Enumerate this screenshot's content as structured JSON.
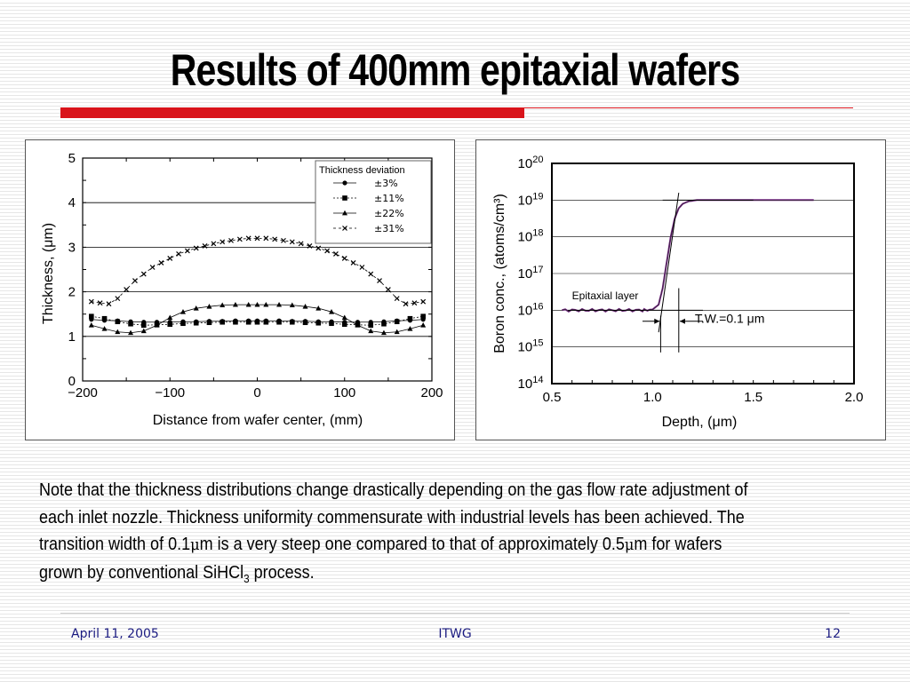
{
  "slide": {
    "title": "Results of 400mm epitaxial wafers",
    "note_line1": "Note that the thickness distributions change drastically depending on the gas flow rate adjustment of",
    "note_line2": "each inlet nozzle. Thickness uniformity commensurate with industrial levels has been achieved. The",
    "note_line3_a": "transition width of 0.1",
    "note_mu1": "μ",
    "note_line3_b": "m is a very steep one compared to that of approximately 0.5",
    "note_mu2": "μ",
    "note_line3_c": "m for wafers",
    "note_line4_a": "grown by conventional SiHCl",
    "note_line4_sub": "3",
    "note_line4_b": " process.",
    "footer_date": "April  11, 2005",
    "footer_center": "ITWG",
    "footer_page": "12"
  },
  "colors": {
    "accent_red": "#d9141b",
    "footer_text": "#1a1a80",
    "profile_purple": "#7a2a8a"
  },
  "chart_data": [
    {
      "type": "line",
      "xlabel": "Distance from wafer center, (mm)",
      "ylabel": "Thickness, (μm)",
      "xlim": [
        -200,
        200
      ],
      "ylim": [
        0,
        5
      ],
      "xticks": [
        "−200",
        "−100",
        "0",
        "100",
        "200"
      ],
      "yticks": [
        "0",
        "1",
        "2",
        "3",
        "4",
        "5"
      ],
      "legend_title": "Thickness deviation",
      "legend_position": "top-right",
      "grid": "horizontal",
      "series": [
        {
          "name": "±3%",
          "marker": "circle",
          "x": [
            -190,
            -175,
            -160,
            -145,
            -130,
            -115,
            -100,
            -85,
            -70,
            -55,
            -40,
            -25,
            -10,
            0,
            10,
            25,
            40,
            55,
            70,
            85,
            100,
            115,
            130,
            145,
            160,
            175,
            190
          ],
          "y": [
            1.38,
            1.36,
            1.35,
            1.33,
            1.32,
            1.32,
            1.32,
            1.33,
            1.33,
            1.34,
            1.34,
            1.35,
            1.35,
            1.35,
            1.35,
            1.35,
            1.34,
            1.34,
            1.33,
            1.33,
            1.32,
            1.32,
            1.32,
            1.33,
            1.35,
            1.36,
            1.38
          ]
        },
        {
          "name": "±11%",
          "marker": "square",
          "x": [
            -190,
            -175,
            -160,
            -145,
            -130,
            -115,
            -100,
            -85,
            -70,
            -55,
            -40,
            -25,
            -10,
            0,
            10,
            25,
            40,
            55,
            70,
            85,
            100,
            115,
            130,
            145,
            160,
            175,
            190
          ],
          "y": [
            1.45,
            1.4,
            1.33,
            1.28,
            1.25,
            1.26,
            1.27,
            1.29,
            1.3,
            1.31,
            1.32,
            1.32,
            1.32,
            1.32,
            1.32,
            1.32,
            1.32,
            1.31,
            1.3,
            1.29,
            1.27,
            1.26,
            1.25,
            1.28,
            1.33,
            1.4,
            1.45
          ]
        },
        {
          "name": "±22%",
          "marker": "triangle",
          "x": [
            -190,
            -175,
            -160,
            -145,
            -130,
            -115,
            -100,
            -85,
            -70,
            -55,
            -40,
            -25,
            -10,
            0,
            10,
            25,
            40,
            55,
            70,
            85,
            100,
            115,
            130,
            145,
            160,
            175,
            190
          ],
          "y": [
            1.25,
            1.17,
            1.1,
            1.08,
            1.12,
            1.25,
            1.42,
            1.55,
            1.63,
            1.67,
            1.7,
            1.71,
            1.71,
            1.71,
            1.71,
            1.71,
            1.7,
            1.67,
            1.63,
            1.55,
            1.42,
            1.25,
            1.12,
            1.08,
            1.1,
            1.17,
            1.25
          ]
        },
        {
          "name": "±31%",
          "marker": "x",
          "x": [
            -190,
            -180,
            -170,
            -160,
            -150,
            -140,
            -130,
            -120,
            -110,
            -100,
            -90,
            -80,
            -70,
            -60,
            -50,
            -40,
            -30,
            -20,
            -10,
            0,
            10,
            20,
            30,
            40,
            50,
            60,
            70,
            80,
            90,
            100,
            110,
            120,
            130,
            140,
            150,
            160,
            170,
            180,
            190
          ],
          "y": [
            1.78,
            1.75,
            1.73,
            1.85,
            2.05,
            2.25,
            2.4,
            2.55,
            2.65,
            2.75,
            2.85,
            2.92,
            2.98,
            3.03,
            3.08,
            3.12,
            3.15,
            3.18,
            3.2,
            3.2,
            3.2,
            3.18,
            3.15,
            3.12,
            3.08,
            3.03,
            2.98,
            2.92,
            2.85,
            2.75,
            2.65,
            2.55,
            2.4,
            2.25,
            2.05,
            1.85,
            1.73,
            1.75,
            1.78
          ]
        }
      ]
    },
    {
      "type": "line",
      "xlabel": "Depth, (μm)",
      "ylabel": "Boron conc., (atoms/cm³)",
      "xlim": [
        0.5,
        2.0
      ],
      "ylim_log10": [
        14,
        20
      ],
      "yscale": "log",
      "xticks": [
        "0.5",
        "1.0",
        "1.5",
        "2.0"
      ],
      "yticks": [
        "10",
        "10",
        "10",
        "10",
        "10",
        "10",
        "10"
      ],
      "ytick_exponents": [
        "14",
        "15",
        "16",
        "17",
        "18",
        "19",
        "20"
      ],
      "grid": "horizontal",
      "annotations": {
        "layer": "Epitaxial layer",
        "width": "T.W.=0.1 μm"
      },
      "series": [
        {
          "x": [
            0.55,
            0.65,
            0.75,
            0.85,
            0.95,
            1.0,
            1.03,
            1.05,
            1.07,
            1.09,
            1.11,
            1.13,
            1.15,
            1.18,
            1.22,
            1.3,
            1.4,
            1.6,
            1.8
          ],
          "log10_y": [
            16.0,
            16.0,
            16.0,
            16.0,
            16.0,
            16.02,
            16.15,
            16.6,
            17.3,
            18.0,
            18.5,
            18.78,
            18.9,
            18.97,
            19.0,
            19.0,
            19.0,
            19.0,
            19.0
          ]
        }
      ]
    }
  ]
}
